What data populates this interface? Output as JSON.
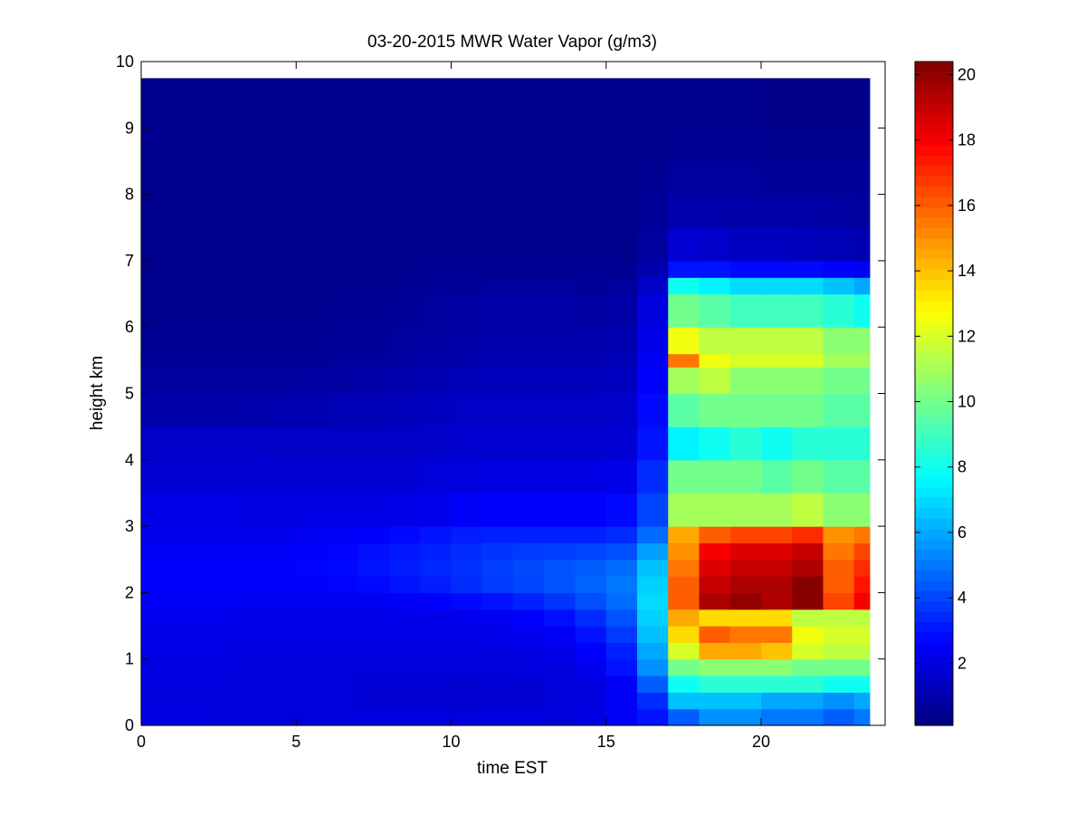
{
  "chart_data": {
    "type": "heatmap",
    "title": "03-20-2015 MWR Water Vapor (g/m3)",
    "xlabel": "time EST",
    "ylabel": "height km",
    "xlim": [
      0,
      24
    ],
    "ylim": [
      0,
      10
    ],
    "x_ticks": [
      0,
      5,
      10,
      15,
      20
    ],
    "y_ticks": [
      0,
      1,
      2,
      3,
      4,
      5,
      6,
      7,
      8,
      9,
      10
    ],
    "colormap": "jet",
    "color_range": [
      0.1,
      20.4
    ],
    "colorbar_ticks": [
      2,
      4,
      6,
      8,
      10,
      12,
      14,
      16,
      18,
      20
    ],
    "x_centers": [
      0.5,
      1.5,
      2.5,
      3.5,
      4.5,
      5.5,
      6.5,
      7.5,
      8.5,
      9.5,
      10.5,
      11.5,
      12.5,
      13.5,
      14.5,
      15.5,
      16.5,
      17.5,
      18.5,
      19.5,
      20.5,
      21.5,
      22.5,
      23.5
    ],
    "x_edges_end": 23.5,
    "y_top": 9.75,
    "y_levels": [
      {
        "y0": 0.0,
        "y1": 0.25
      },
      {
        "y0": 0.25,
        "y1": 0.5
      },
      {
        "y0": 0.5,
        "y1": 0.75
      },
      {
        "y0": 0.75,
        "y1": 1.0
      },
      {
        "y0": 1.0,
        "y1": 1.25
      },
      {
        "y0": 1.25,
        "y1": 1.5
      },
      {
        "y0": 1.5,
        "y1": 1.75
      },
      {
        "y0": 1.75,
        "y1": 2.0
      },
      {
        "y0": 2.0,
        "y1": 2.25
      },
      {
        "y0": 2.25,
        "y1": 2.5
      },
      {
        "y0": 2.5,
        "y1": 2.75
      },
      {
        "y0": 2.75,
        "y1": 3.0
      },
      {
        "y0": 3.0,
        "y1": 3.5
      },
      {
        "y0": 3.5,
        "y1": 4.0
      },
      {
        "y0": 4.0,
        "y1": 4.5
      },
      {
        "y0": 4.5,
        "y1": 5.0
      },
      {
        "y0": 5.0,
        "y1": 5.4
      },
      {
        "y0": 5.4,
        "y1": 5.6
      },
      {
        "y0": 5.6,
        "y1": 6.0
      },
      {
        "y0": 6.0,
        "y1": 6.5
      },
      {
        "y0": 6.5,
        "y1": 6.75
      },
      {
        "y0": 6.75,
        "y1": 7.0
      },
      {
        "y0": 7.0,
        "y1": 7.5
      },
      {
        "y0": 7.5,
        "y1": 8.0
      },
      {
        "y0": 8.0,
        "y1": 8.5
      },
      {
        "y0": 8.5,
        "y1": 9.0
      },
      {
        "y0": 9.0,
        "y1": 9.75
      }
    ],
    "values": [
      [
        2.1,
        2.1,
        2.0,
        2.0,
        2.0,
        2.0,
        2.0,
        2.0,
        2.0,
        2.0,
        2.0,
        2.0,
        2.0,
        1.9,
        2.1,
        2.5,
        3.0,
        4.5,
        5.5,
        5.5,
        5.0,
        5.0,
        4.5,
        5.0
      ],
      [
        2.0,
        2.0,
        2.0,
        1.9,
        1.9,
        1.9,
        1.9,
        1.8,
        1.8,
        1.8,
        1.7,
        1.8,
        1.8,
        1.9,
        2.0,
        2.5,
        3.5,
        6.5,
        6.5,
        6.5,
        6.0,
        6.0,
        5.5,
        6.0
      ],
      [
        2.0,
        2.0,
        2.0,
        1.9,
        1.9,
        1.9,
        1.9,
        1.8,
        1.8,
        1.8,
        1.7,
        1.8,
        1.8,
        1.9,
        2.0,
        2.5,
        4.5,
        8.0,
        8.5,
        8.5,
        8.5,
        8.5,
        8.0,
        8.0
      ],
      [
        2.1,
        2.1,
        2.1,
        2.0,
        2.0,
        2.0,
        2.0,
        1.9,
        1.9,
        1.9,
        1.9,
        1.9,
        2.0,
        2.0,
        2.3,
        3.0,
        5.5,
        10.0,
        10.5,
        10.5,
        10.5,
        10.0,
        10.0,
        10.0
      ],
      [
        2.1,
        2.1,
        2.1,
        2.0,
        2.0,
        2.0,
        2.0,
        2.0,
        2.0,
        2.0,
        2.0,
        2.0,
        2.1,
        2.2,
        2.6,
        3.3,
        6.0,
        12.0,
        14.5,
        14.5,
        14.0,
        12.0,
        11.5,
        11.5
      ],
      [
        2.2,
        2.2,
        2.2,
        2.1,
        2.1,
        2.1,
        2.1,
        2.1,
        2.1,
        2.1,
        2.1,
        2.2,
        2.3,
        2.5,
        3.0,
        3.8,
        6.5,
        13.5,
        16.0,
        15.5,
        15.5,
        12.5,
        12.0,
        12.0
      ],
      [
        2.3,
        2.3,
        2.3,
        2.2,
        2.2,
        2.2,
        2.2,
        2.2,
        2.2,
        2.2,
        2.3,
        2.4,
        2.6,
        2.9,
        3.5,
        4.3,
        6.8,
        14.5,
        13.5,
        13.5,
        13.5,
        11.5,
        11.5,
        11.5
      ],
      [
        2.5,
        2.5,
        2.5,
        2.4,
        2.4,
        2.4,
        2.4,
        2.4,
        2.5,
        2.6,
        2.8,
        3.0,
        3.3,
        3.7,
        4.2,
        4.8,
        7.0,
        16.0,
        19.5,
        20.0,
        19.5,
        20.2,
        16.5,
        18.0
      ],
      [
        2.6,
        2.6,
        2.6,
        2.6,
        2.6,
        2.6,
        2.7,
        2.8,
        3.0,
        3.2,
        3.5,
        3.8,
        4.0,
        4.3,
        4.6,
        5.0,
        6.8,
        16.0,
        19.0,
        19.5,
        19.5,
        20.3,
        16.0,
        17.5
      ],
      [
        2.6,
        2.6,
        2.6,
        2.6,
        2.6,
        2.7,
        2.8,
        3.0,
        3.2,
        3.4,
        3.6,
        3.9,
        4.1,
        4.3,
        4.5,
        4.8,
        6.5,
        15.5,
        18.5,
        19.0,
        19.0,
        19.5,
        16.0,
        17.0
      ],
      [
        2.5,
        2.5,
        2.5,
        2.5,
        2.5,
        2.6,
        2.7,
        2.9,
        3.1,
        3.3,
        3.5,
        3.7,
        3.8,
        3.9,
        4.0,
        4.2,
        5.8,
        15.0,
        18.0,
        18.5,
        18.5,
        19.0,
        15.5,
        16.5
      ],
      [
        2.3,
        2.3,
        2.3,
        2.3,
        2.3,
        2.4,
        2.5,
        2.6,
        2.8,
        3.0,
        3.2,
        3.3,
        3.3,
        3.3,
        3.3,
        3.5,
        4.8,
        14.5,
        16.0,
        16.5,
        16.5,
        17.0,
        15.0,
        15.5
      ],
      [
        2.2,
        2.2,
        2.2,
        2.1,
        2.1,
        2.1,
        2.1,
        2.1,
        2.2,
        2.3,
        2.5,
        2.6,
        2.6,
        2.6,
        2.6,
        2.8,
        4.0,
        11.0,
        11.0,
        11.0,
        11.0,
        11.5,
        10.5,
        10.5
      ],
      [
        1.8,
        1.8,
        1.8,
        1.8,
        1.8,
        1.8,
        1.8,
        1.8,
        1.8,
        1.9,
        2.0,
        2.1,
        2.1,
        2.1,
        2.1,
        2.2,
        3.5,
        10.0,
        10.0,
        10.0,
        9.5,
        10.0,
        9.5,
        9.5
      ],
      [
        1.6,
        1.6,
        1.6,
        1.6,
        1.5,
        1.5,
        1.5,
        1.5,
        1.5,
        1.6,
        1.7,
        1.7,
        1.7,
        1.7,
        1.7,
        1.8,
        3.0,
        7.5,
        8.0,
        8.5,
        8.0,
        8.5,
        8.5,
        8.5
      ],
      [
        0.9,
        0.9,
        0.9,
        1.0,
        1.1,
        1.1,
        1.2,
        1.2,
        1.3,
        1.4,
        1.5,
        1.5,
        1.5,
        1.5,
        1.5,
        1.6,
        2.8,
        9.5,
        10.0,
        10.0,
        10.0,
        10.0,
        9.5,
        9.5
      ],
      [
        0.7,
        0.7,
        0.7,
        0.7,
        0.7,
        0.8,
        0.8,
        0.9,
        1.0,
        1.1,
        1.2,
        1.3,
        1.3,
        1.3,
        1.3,
        1.4,
        2.6,
        11.0,
        11.5,
        10.5,
        10.5,
        10.5,
        10.0,
        10.0
      ],
      [
        0.6,
        0.6,
        0.6,
        0.6,
        0.6,
        0.6,
        0.7,
        0.7,
        0.8,
        0.9,
        1.0,
        1.1,
        1.1,
        1.1,
        1.1,
        1.2,
        2.4,
        15.5,
        12.5,
        12.0,
        12.0,
        12.0,
        11.0,
        11.0
      ],
      [
        0.5,
        0.5,
        0.5,
        0.5,
        0.5,
        0.5,
        0.6,
        0.6,
        0.7,
        0.8,
        0.9,
        1.0,
        1.0,
        1.0,
        1.0,
        1.1,
        2.2,
        12.5,
        11.5,
        11.5,
        11.5,
        11.5,
        10.5,
        10.5
      ],
      [
        0.4,
        0.4,
        0.4,
        0.4,
        0.4,
        0.4,
        0.5,
        0.5,
        0.6,
        0.7,
        0.8,
        0.9,
        0.9,
        0.9,
        0.8,
        0.9,
        2.0,
        10.0,
        9.5,
        9.0,
        9.0,
        9.0,
        8.5,
        8.0
      ],
      [
        0.4,
        0.4,
        0.4,
        0.4,
        0.4,
        0.4,
        0.4,
        0.4,
        0.5,
        0.6,
        0.6,
        0.7,
        0.7,
        0.7,
        0.6,
        0.7,
        1.5,
        8.0,
        7.5,
        7.0,
        7.0,
        7.0,
        6.5,
        6.0
      ],
      [
        0.4,
        0.4,
        0.4,
        0.4,
        0.4,
        0.4,
        0.4,
        0.4,
        0.4,
        0.5,
        0.5,
        0.5,
        0.5,
        0.5,
        0.5,
        0.5,
        1.0,
        3.0,
        3.0,
        2.8,
        2.8,
        2.8,
        2.6,
        2.4
      ],
      [
        0.4,
        0.4,
        0.4,
        0.4,
        0.4,
        0.4,
        0.4,
        0.4,
        0.4,
        0.4,
        0.4,
        0.4,
        0.4,
        0.4,
        0.4,
        0.4,
        0.7,
        1.8,
        1.6,
        1.4,
        1.4,
        1.3,
        1.2,
        1.1
      ],
      [
        0.4,
        0.4,
        0.4,
        0.4,
        0.4,
        0.4,
        0.4,
        0.4,
        0.4,
        0.4,
        0.4,
        0.4,
        0.4,
        0.4,
        0.4,
        0.4,
        0.6,
        1.0,
        1.0,
        0.9,
        0.9,
        0.9,
        0.8,
        0.7
      ],
      [
        0.4,
        0.4,
        0.4,
        0.4,
        0.4,
        0.4,
        0.4,
        0.4,
        0.4,
        0.4,
        0.4,
        0.4,
        0.4,
        0.4,
        0.4,
        0.4,
        0.5,
        0.7,
        0.7,
        0.7,
        0.6,
        0.6,
        0.6,
        0.6
      ],
      [
        0.4,
        0.4,
        0.4,
        0.4,
        0.4,
        0.4,
        0.4,
        0.4,
        0.4,
        0.4,
        0.4,
        0.4,
        0.4,
        0.4,
        0.4,
        0.4,
        0.4,
        0.5,
        0.5,
        0.5,
        0.4,
        0.4,
        0.4,
        0.4
      ],
      [
        0.4,
        0.4,
        0.4,
        0.4,
        0.4,
        0.4,
        0.4,
        0.4,
        0.4,
        0.4,
        0.4,
        0.4,
        0.4,
        0.4,
        0.4,
        0.4,
        0.4,
        0.4,
        0.4,
        0.4,
        0.3,
        0.3,
        0.3,
        0.3
      ]
    ]
  }
}
